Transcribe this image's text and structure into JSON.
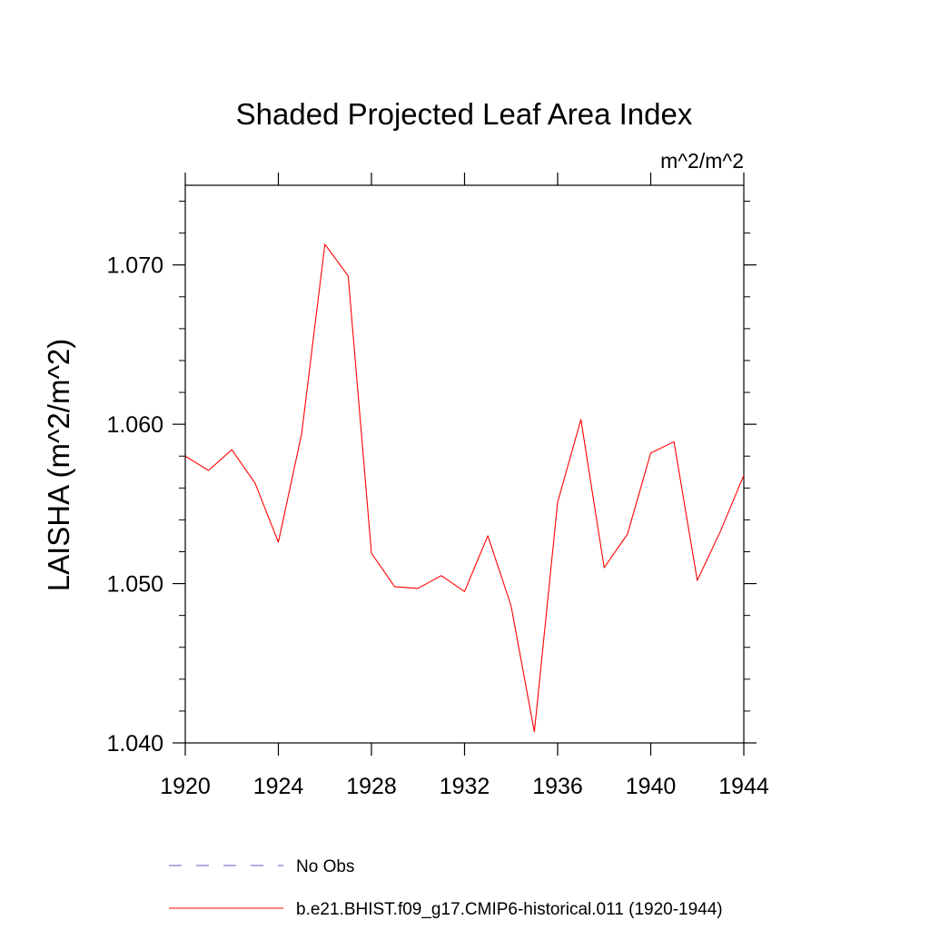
{
  "chart_data": {
    "type": "line",
    "title": "Shaded Projected Leaf Area Index",
    "units_label": "m^2/m^2",
    "ylabel": "LAISHA  (m^2/m^2)",
    "xlabel": "",
    "xlim": [
      1920,
      1944
    ],
    "ylim": [
      1.04,
      1.075
    ],
    "x_ticks": [
      1920,
      1924,
      1928,
      1932,
      1936,
      1940,
      1944
    ],
    "x_tick_labels": [
      "1920",
      "1924",
      "1928",
      "1932",
      "1936",
      "1940",
      "1944"
    ],
    "y_ticks": [
      1.04,
      1.05,
      1.06,
      1.07
    ],
    "y_tick_labels": [
      "1.040",
      "1.050",
      "1.060",
      "1.070"
    ],
    "grid": false,
    "legend_position": "bottom",
    "series": [
      {
        "name": "b.e21.BHIST.f09_g17.CMIP6-historical.011 (1920-1944)",
        "color": "#ff0000",
        "style": "solid",
        "x": [
          1920,
          1921,
          1922,
          1923,
          1924,
          1925,
          1926,
          1927,
          1928,
          1929,
          1930,
          1931,
          1932,
          1933,
          1934,
          1935,
          1936,
          1937,
          1938,
          1939,
          1940,
          1941,
          1942,
          1943,
          1944
        ],
        "values": [
          1.058,
          1.0571,
          1.0584,
          1.0563,
          1.0526,
          1.0594,
          1.0713,
          1.0693,
          1.0519,
          1.0498,
          1.0497,
          1.0505,
          1.0495,
          1.053,
          1.0486,
          1.0407,
          1.0551,
          1.0603,
          1.051,
          1.0531,
          1.0582,
          1.0589,
          1.0502,
          1.0533,
          1.0568
        ]
      }
    ],
    "legend": [
      {
        "label": "No Obs",
        "color": "#6a5acd",
        "style": "dashed"
      },
      {
        "label": "b.e21.BHIST.f09_g17.CMIP6-historical.011 (1920-1944)",
        "color": "#ff0000",
        "style": "solid"
      }
    ]
  }
}
